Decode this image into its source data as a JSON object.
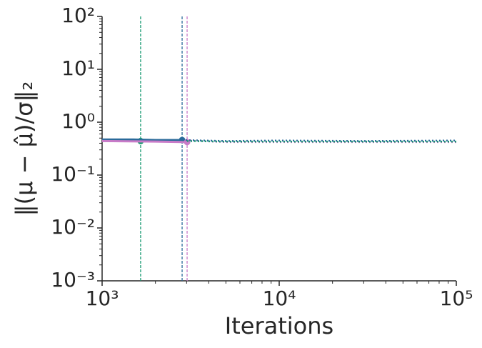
{
  "chart_data": {
    "type": "line",
    "xlabel": "Iterations",
    "ylabel": "‖(μ − μ̂)/σ‖₂",
    "xscale": "log",
    "yscale": "log",
    "xlim": [
      1000,
      100000
    ],
    "ylim": [
      0.001,
      100
    ],
    "xticks": [
      {
        "value": 1000,
        "label": "10³"
      },
      {
        "value": 10000,
        "label": "10⁴"
      },
      {
        "value": 100000,
        "label": "10⁵"
      }
    ],
    "yticks": [
      {
        "value": 0.001,
        "label": "10⁻³"
      },
      {
        "value": 0.01,
        "label": "10⁻²"
      },
      {
        "value": 0.1,
        "label": "10⁻¹"
      },
      {
        "value": 1,
        "label": "10⁰"
      },
      {
        "value": 10,
        "label": "10¹"
      },
      {
        "value": 100,
        "label": "10²"
      }
    ],
    "xminorticks": [
      2000,
      3000,
      4000,
      5000,
      6000,
      7000,
      8000,
      9000,
      20000,
      30000,
      40000,
      50000,
      60000,
      70000,
      80000,
      90000
    ],
    "yminorticks": [
      0.002,
      0.003,
      0.004,
      0.005,
      0.006,
      0.007,
      0.008,
      0.009,
      0.02,
      0.03,
      0.04,
      0.05,
      0.06,
      0.07,
      0.08,
      0.09,
      0.2,
      0.3,
      0.4,
      0.5,
      0.6,
      0.7,
      0.8,
      0.9,
      2,
      3,
      4,
      5,
      6,
      7,
      8,
      9,
      20,
      30,
      40,
      50,
      60,
      70,
      80,
      90
    ],
    "series": [
      {
        "color": "#1a9a72",
        "linestyle": "solid",
        "marker": true,
        "x": [
          1000,
          1300,
          1650
        ],
        "values": [
          0.45,
          0.45,
          0.44
        ]
      },
      {
        "color": "#2a6a9a",
        "linestyle": "solid",
        "marker": true,
        "x": [
          1000,
          1500,
          2000,
          2830
        ],
        "values": [
          0.47,
          0.47,
          0.46,
          0.46
        ]
      },
      {
        "color": "#c87bc8",
        "linestyle": "solid",
        "marker": true,
        "x": [
          1000,
          2000,
          3020
        ],
        "values": [
          0.44,
          0.43,
          0.42
        ]
      },
      {
        "color": "#2a6a9a",
        "linestyle": "dotted",
        "marker": false,
        "x": [
          2830,
          5000,
          10000,
          30000,
          100000
        ],
        "values": [
          0.46,
          0.44,
          0.45,
          0.44,
          0.45
        ]
      },
      {
        "color": "#c87bc8",
        "linestyle": "dotted",
        "marker": false,
        "x": [
          3020,
          5000,
          10000,
          30000,
          100000
        ],
        "values": [
          0.45,
          0.42,
          0.42,
          0.42,
          0.42
        ]
      },
      {
        "color": "#1a9a72",
        "linestyle": "dotted",
        "marker": false,
        "x": [
          3020,
          5000,
          10000,
          30000,
          100000
        ],
        "values": [
          0.44,
          0.43,
          0.43,
          0.43,
          0.43
        ]
      }
    ],
    "vlines": [
      {
        "x": 1650,
        "color": "#1a9a72"
      },
      {
        "x": 2830,
        "color": "#2a6a9a"
      },
      {
        "x": 3020,
        "color": "#c87bc8"
      }
    ]
  }
}
